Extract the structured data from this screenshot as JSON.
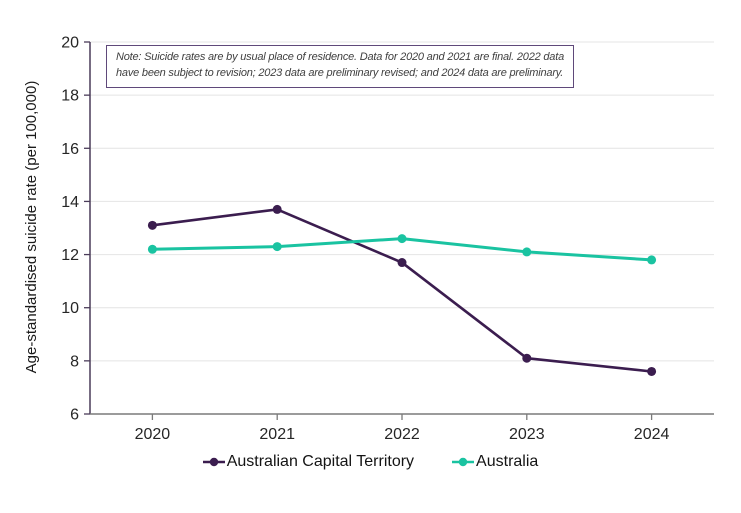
{
  "note": {
    "line1": "Note: Suicide rates are by usual place of residence. Data for 2020 and 2021 are final. 2022 data",
    "line2": "have been subject to revision; 2023 data are preliminary revised; and 2024 data are preliminary."
  },
  "chart_data": {
    "type": "line",
    "title": "",
    "x": [
      "2020",
      "2021",
      "2022",
      "2023",
      "2024"
    ],
    "series": [
      {
        "name": "Australian Capital Territory",
        "color": "#3b1d4f",
        "values": [
          13.1,
          13.7,
          11.7,
          8.1,
          7.6
        ]
      },
      {
        "name": "Australia",
        "color": "#1ac3a1",
        "values": [
          12.2,
          12.3,
          12.6,
          12.1,
          11.8
        ]
      }
    ],
    "xlabel": "",
    "ylabel": "Age-standardised suicide rate (per 100,000)",
    "ylim": [
      6,
      20
    ],
    "yticks": [
      20,
      18,
      16,
      14,
      12,
      10,
      8,
      6
    ],
    "grid": true,
    "legend_position": "bottom",
    "colors": {
      "gridline": "#e4e4e4",
      "y_axis": "#4a3c59",
      "x_axis": "#7a7a7a",
      "tick_label": "#262626",
      "note_border": "#5f497a",
      "note_text": "#404040"
    }
  }
}
